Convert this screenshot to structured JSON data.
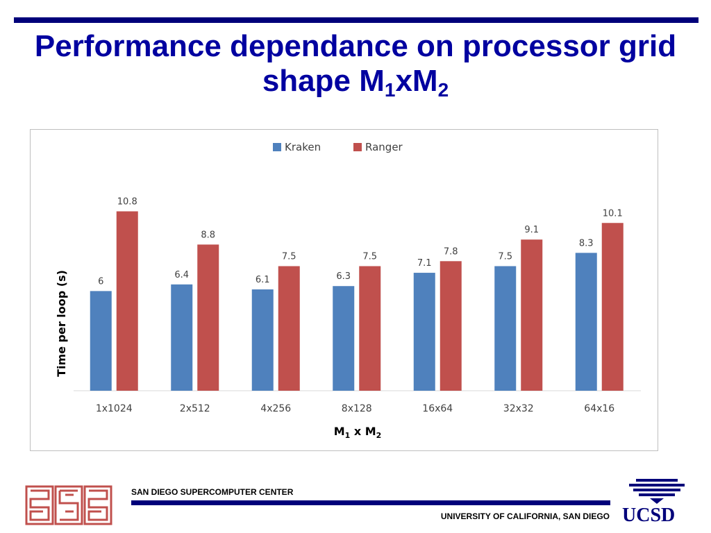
{
  "slide": {
    "title_line1": "Performance dependance on processor grid",
    "title_line2_prefix": "shape M",
    "title_sub1": "1",
    "title_mid": "xM",
    "title_sub2": "2"
  },
  "footer": {
    "organization": "SAN DIEGO SUPERCOMPUTER CENTER",
    "university": "UNIVERSITY OF CALIFORNIA, SAN DIEGO",
    "logo_text": "UCSD"
  },
  "colors": {
    "title": "#0000a0",
    "rule": "#00007a",
    "kraken": "#4f81bd",
    "ranger": "#c0504d"
  },
  "chart_data": {
    "type": "bar",
    "categories": [
      "1x1024",
      "2x512",
      "4x256",
      "8x128",
      "16x64",
      "32x32",
      "64x16"
    ],
    "series": [
      {
        "name": "Kraken",
        "values": [
          6,
          6.4,
          6.1,
          6.3,
          7.1,
          7.5,
          8.3
        ],
        "labels": [
          "6",
          "6.4",
          "6.1",
          "6.3",
          "7.1",
          "7.5",
          "8.3"
        ]
      },
      {
        "name": "Ranger",
        "values": [
          10.8,
          8.8,
          7.5,
          7.5,
          7.8,
          9.1,
          10.1
        ],
        "labels": [
          "10.8",
          "8.8",
          "7.5",
          "7.5",
          "7.8",
          "9.1",
          "10.1"
        ]
      }
    ],
    "ylabel": "Time per loop (s)",
    "xlabel": "M1 x M2",
    "ylim": [
      0,
      12
    ],
    "grid": false,
    "legend": "top-center"
  }
}
